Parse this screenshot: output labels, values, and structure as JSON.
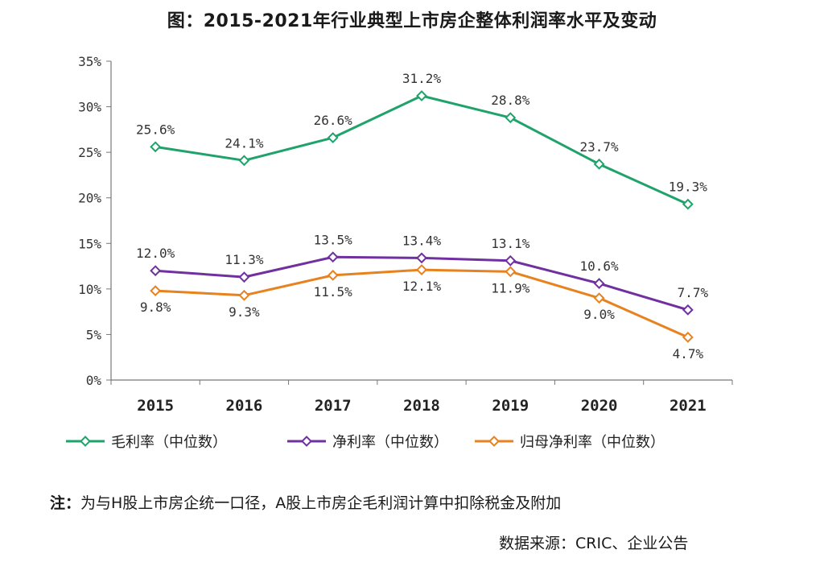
{
  "title": "图：2015-2021年行业典型上市房企整体利润率水平及变动",
  "chart_data": {
    "type": "line",
    "categories": [
      "2015",
      "2016",
      "2017",
      "2018",
      "2019",
      "2020",
      "2021"
    ],
    "y_ticks": [
      "0%",
      "5%",
      "10%",
      "15%",
      "20%",
      "25%",
      "30%",
      "35%"
    ],
    "ylim": [
      0,
      35
    ],
    "grid": false,
    "legend_position": "bottom",
    "series": [
      {
        "name": "毛利率（中位数）",
        "color": "#1fa36a",
        "values": [
          25.6,
          24.1,
          26.6,
          31.2,
          28.8,
          23.7,
          19.3
        ],
        "labels": [
          "25.6%",
          "24.1%",
          "26.6%",
          "31.2%",
          "28.8%",
          "23.7%",
          "19.3%"
        ]
      },
      {
        "name": "净利率（中位数）",
        "color": "#7030a0",
        "values": [
          12.0,
          11.3,
          13.5,
          13.4,
          13.1,
          10.6,
          7.7
        ],
        "labels": [
          "12.0%",
          "11.3%",
          "13.5%",
          "13.4%",
          "13.1%",
          "10.6%",
          "7.7%"
        ]
      },
      {
        "name": "归母净利率（中位数）",
        "color": "#e8821e",
        "values": [
          9.8,
          9.3,
          11.5,
          12.1,
          11.9,
          9.0,
          4.7
        ],
        "labels": [
          "9.8%",
          "9.3%",
          "11.5%",
          "12.1%",
          "11.9%",
          "9.0%",
          "4.7%"
        ]
      }
    ]
  },
  "note": {
    "prefix": "注：",
    "text": "为与H股上市房企统一口径，A股上市房企毛利润计算中扣除税金及附加"
  },
  "source": "数据来源：CRIC、企业公告"
}
